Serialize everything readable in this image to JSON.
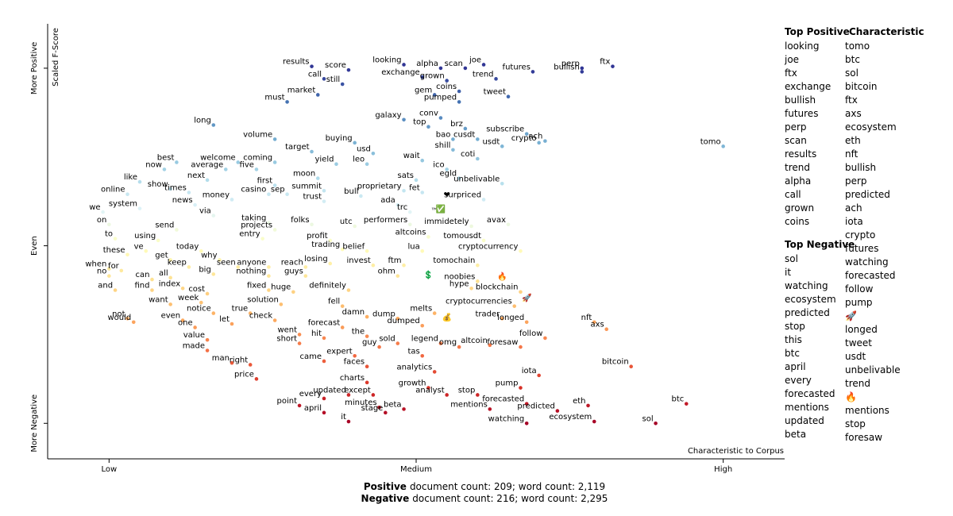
{
  "chart_data": {
    "type": "scatter",
    "x_label": "Characteristic to Corpus",
    "y_label": "Scaled F-Score",
    "xlim": [
      -0.1,
      1.1
    ],
    "ylim": [
      -1.2,
      1.25
    ],
    "xticks": [
      {
        "value": 0,
        "label": "Low"
      },
      {
        "value": 0.5,
        "label": "Medium"
      },
      {
        "value": 1,
        "label": "High"
      }
    ],
    "yticks": [
      {
        "value": -1,
        "label": "More Negative"
      },
      {
        "value": 0,
        "label": "Even"
      },
      {
        "value": 1,
        "label": "More Positive"
      }
    ],
    "colorscale": [
      "#a50026",
      "#d73027",
      "#f46d43",
      "#fdae61",
      "#fee090",
      "#ffffbf",
      "#e0f3f8",
      "#abd9e9",
      "#74add1",
      "#4575b4",
      "#313695"
    ],
    "points": [
      {
        "word": "results",
        "x": 0.33,
        "y": 1.01
      },
      {
        "word": "score",
        "x": 0.39,
        "y": 0.99
      },
      {
        "word": "call",
        "x": 0.35,
        "y": 0.94
      },
      {
        "word": "market",
        "x": 0.34,
        "y": 0.85
      },
      {
        "word": "still",
        "x": 0.38,
        "y": 0.91
      },
      {
        "word": "must",
        "x": 0.29,
        "y": 0.81
      },
      {
        "word": "looking",
        "x": 0.48,
        "y": 1.02
      },
      {
        "word": "scan",
        "x": 0.58,
        "y": 1.0
      },
      {
        "word": "alpha",
        "x": 0.54,
        "y": 1.0
      },
      {
        "word": "joe",
        "x": 0.61,
        "y": 1.02
      },
      {
        "word": "exchange",
        "x": 0.51,
        "y": 0.95
      },
      {
        "word": "grown",
        "x": 0.55,
        "y": 0.93
      },
      {
        "word": "trend",
        "x": 0.63,
        "y": 0.94
      },
      {
        "word": "futures",
        "x": 0.69,
        "y": 0.98
      },
      {
        "word": "perp",
        "x": 0.77,
        "y": 1.0
      },
      {
        "word": "ftx",
        "x": 0.82,
        "y": 1.01
      },
      {
        "word": "bullish",
        "x": 0.77,
        "y": 0.98
      },
      {
        "word": "gem",
        "x": 0.53,
        "y": 0.85
      },
      {
        "word": "coins",
        "x": 0.57,
        "y": 0.87
      },
      {
        "word": "pumped",
        "x": 0.57,
        "y": 0.81
      },
      {
        "word": "tweet",
        "x": 0.65,
        "y": 0.84
      },
      {
        "word": "galaxy",
        "x": 0.48,
        "y": 0.71
      },
      {
        "word": "conv",
        "x": 0.54,
        "y": 0.72
      },
      {
        "word": "brz",
        "x": 0.58,
        "y": 0.66
      },
      {
        "word": "top",
        "x": 0.52,
        "y": 0.67
      },
      {
        "word": "subscribe",
        "x": 0.68,
        "y": 0.63
      },
      {
        "word": "bao",
        "x": 0.56,
        "y": 0.6
      },
      {
        "word": "cusdt",
        "x": 0.6,
        "y": 0.6
      },
      {
        "word": "usdt",
        "x": 0.64,
        "y": 0.56
      },
      {
        "word": "crypto",
        "x": 0.7,
        "y": 0.58
      },
      {
        "word": "ach",
        "x": 0.71,
        "y": 0.59
      },
      {
        "word": "shill",
        "x": 0.56,
        "y": 0.54
      },
      {
        "word": "tomo",
        "x": 1.0,
        "y": 0.56
      },
      {
        "word": "long",
        "x": 0.17,
        "y": 0.68
      },
      {
        "word": "volume",
        "x": 0.27,
        "y": 0.6
      },
      {
        "word": "buying",
        "x": 0.4,
        "y": 0.58
      },
      {
        "word": "usd",
        "x": 0.43,
        "y": 0.52
      },
      {
        "word": "target",
        "x": 0.33,
        "y": 0.53
      },
      {
        "word": "best",
        "x": 0.11,
        "y": 0.47
      },
      {
        "word": "welcome",
        "x": 0.21,
        "y": 0.47
      },
      {
        "word": "coming",
        "x": 0.27,
        "y": 0.47
      },
      {
        "word": "now",
        "x": 0.09,
        "y": 0.43
      },
      {
        "word": "average",
        "x": 0.19,
        "y": 0.43
      },
      {
        "word": "five",
        "x": 0.24,
        "y": 0.43
      },
      {
        "word": "yield",
        "x": 0.37,
        "y": 0.46
      },
      {
        "word": "leo",
        "x": 0.42,
        "y": 0.46
      },
      {
        "word": "wait",
        "x": 0.51,
        "y": 0.48
      },
      {
        "word": "coti",
        "x": 0.6,
        "y": 0.49
      },
      {
        "word": "ico",
        "x": 0.55,
        "y": 0.43
      },
      {
        "word": "like",
        "x": 0.05,
        "y": 0.36
      },
      {
        "word": "next",
        "x": 0.16,
        "y": 0.37
      },
      {
        "word": "first",
        "x": 0.27,
        "y": 0.34
      },
      {
        "word": "moon",
        "x": 0.34,
        "y": 0.38
      },
      {
        "word": "sats",
        "x": 0.5,
        "y": 0.37
      },
      {
        "word": "egld",
        "x": 0.57,
        "y": 0.38
      },
      {
        "word": "show",
        "x": 0.1,
        "y": 0.32
      },
      {
        "word": "summit",
        "x": 0.35,
        "y": 0.31
      },
      {
        "word": "unbelivable",
        "x": 0.64,
        "y": 0.35
      },
      {
        "word": "proprietary",
        "x": 0.48,
        "y": 0.31
      },
      {
        "word": "times",
        "x": 0.13,
        "y": 0.3
      },
      {
        "word": "online",
        "x": 0.03,
        "y": 0.29
      },
      {
        "word": "casino",
        "x": 0.26,
        "y": 0.29
      },
      {
        "word": "sep",
        "x": 0.29,
        "y": 0.29
      },
      {
        "word": "bull",
        "x": 0.41,
        "y": 0.28
      },
      {
        "word": "fet",
        "x": 0.51,
        "y": 0.3
      },
      {
        "word": "money",
        "x": 0.2,
        "y": 0.26
      },
      {
        "word": "news",
        "x": 0.14,
        "y": 0.23
      },
      {
        "word": "trust",
        "x": 0.35,
        "y": 0.25
      },
      {
        "word": "ada",
        "x": 0.47,
        "y": 0.23
      },
      {
        "word": "surpriced",
        "x": 0.61,
        "y": 0.26
      },
      {
        "word": "we",
        "x": -0.01,
        "y": 0.19
      },
      {
        "word": "system",
        "x": 0.05,
        "y": 0.21
      },
      {
        "word": "via",
        "x": 0.17,
        "y": 0.17
      },
      {
        "word": "trc",
        "x": 0.49,
        "y": 0.19
      },
      {
        "word": "❤",
        "x": 0.55,
        "y": 0.29
      },
      {
        "word": "™",
        "x": 0.53,
        "y": 0.2
      },
      {
        "word": "✅",
        "x": 0.54,
        "y": 0.21
      },
      {
        "word": "on",
        "x": 0.0,
        "y": 0.12
      },
      {
        "word": "taking",
        "x": 0.26,
        "y": 0.13
      },
      {
        "word": "send",
        "x": 0.11,
        "y": 0.09
      },
      {
        "word": "projects",
        "x": 0.27,
        "y": 0.09
      },
      {
        "word": "folks",
        "x": 0.33,
        "y": 0.12
      },
      {
        "word": "utc",
        "x": 0.4,
        "y": 0.11
      },
      {
        "word": "performers",
        "x": 0.49,
        "y": 0.12
      },
      {
        "word": "immidetely",
        "x": 0.59,
        "y": 0.11
      },
      {
        "word": "avax",
        "x": 0.65,
        "y": 0.12
      },
      {
        "word": "altcoins",
        "x": 0.52,
        "y": 0.05
      },
      {
        "word": "to",
        "x": 0.01,
        "y": 0.04
      },
      {
        "word": "using",
        "x": 0.08,
        "y": 0.03
      },
      {
        "word": "entry",
        "x": 0.25,
        "y": 0.04
      },
      {
        "word": "profit",
        "x": 0.36,
        "y": 0.03
      },
      {
        "word": "tomousdt",
        "x": 0.61,
        "y": 0.03
      },
      {
        "word": "these",
        "x": 0.03,
        "y": -0.05
      },
      {
        "word": "ve",
        "x": 0.06,
        "y": -0.03
      },
      {
        "word": "today",
        "x": 0.15,
        "y": -0.03
      },
      {
        "word": "trading",
        "x": 0.38,
        "y": -0.02
      },
      {
        "word": "belief",
        "x": 0.42,
        "y": -0.03
      },
      {
        "word": "lua",
        "x": 0.51,
        "y": -0.03
      },
      {
        "word": "cryptocurrency",
        "x": 0.67,
        "y": -0.03
      },
      {
        "word": "get",
        "x": 0.1,
        "y": -0.08
      },
      {
        "word": "why",
        "x": 0.18,
        "y": -0.08
      },
      {
        "word": "seen",
        "x": 0.21,
        "y": -0.12
      },
      {
        "word": "anyone",
        "x": 0.26,
        "y": -0.12
      },
      {
        "word": "reach",
        "x": 0.32,
        "y": -0.12
      },
      {
        "word": "losing",
        "x": 0.36,
        "y": -0.1
      },
      {
        "word": "invest",
        "x": 0.43,
        "y": -0.11
      },
      {
        "word": "ftm",
        "x": 0.48,
        "y": -0.11
      },
      {
        "word": "tomochain",
        "x": 0.6,
        "y": -0.11
      },
      {
        "word": "when",
        "x": 0.0,
        "y": -0.13
      },
      {
        "word": "for",
        "x": 0.02,
        "y": -0.14
      },
      {
        "word": "keep",
        "x": 0.13,
        "y": -0.12
      },
      {
        "word": "no",
        "x": 0.0,
        "y": -0.17
      },
      {
        "word": "big",
        "x": 0.17,
        "y": -0.16
      },
      {
        "word": "nothing",
        "x": 0.26,
        "y": -0.17
      },
      {
        "word": "guys",
        "x": 0.32,
        "y": -0.17
      },
      {
        "word": "ohm",
        "x": 0.47,
        "y": -0.17
      },
      {
        "word": "can",
        "x": 0.07,
        "y": -0.19
      },
      {
        "word": "all",
        "x": 0.1,
        "y": -0.18
      },
      {
        "word": "noobies",
        "x": 0.6,
        "y": -0.2
      },
      {
        "word": "🔥",
        "x": 0.64,
        "y": -0.17
      },
      {
        "word": "💲",
        "x": 0.52,
        "y": -0.16
      },
      {
        "word": "and",
        "x": 0.01,
        "y": -0.25
      },
      {
        "word": "find",
        "x": 0.07,
        "y": -0.25
      },
      {
        "word": "index",
        "x": 0.12,
        "y": -0.24
      },
      {
        "word": "fixed",
        "x": 0.26,
        "y": -0.25
      },
      {
        "word": "huge",
        "x": 0.3,
        "y": -0.26
      },
      {
        "word": "definitely",
        "x": 0.39,
        "y": -0.25
      },
      {
        "word": "hype",
        "x": 0.59,
        "y": -0.24
      },
      {
        "word": "blockchain",
        "x": 0.67,
        "y": -0.26
      },
      {
        "word": "cost",
        "x": 0.16,
        "y": -0.27
      },
      {
        "word": "🚀",
        "x": 0.68,
        "y": -0.29
      },
      {
        "word": "want",
        "x": 0.1,
        "y": -0.33
      },
      {
        "word": "week",
        "x": 0.15,
        "y": -0.32
      },
      {
        "word": "solution",
        "x": 0.28,
        "y": -0.33
      },
      {
        "word": "fell",
        "x": 0.38,
        "y": -0.34
      },
      {
        "word": "cryptocurrencies",
        "x": 0.66,
        "y": -0.34
      },
      {
        "word": "notice",
        "x": 0.17,
        "y": -0.38
      },
      {
        "word": "true",
        "x": 0.23,
        "y": -0.38
      },
      {
        "word": "melts",
        "x": 0.53,
        "y": -0.38
      },
      {
        "word": "not",
        "x": 0.03,
        "y": -0.41
      },
      {
        "word": "even",
        "x": 0.12,
        "y": -0.42
      },
      {
        "word": "damn",
        "x": 0.42,
        "y": -0.4
      },
      {
        "word": "dump",
        "x": 0.47,
        "y": -0.41
      },
      {
        "word": "check",
        "x": 0.27,
        "y": -0.42
      },
      {
        "word": "let",
        "x": 0.2,
        "y": -0.44
      },
      {
        "word": "💰",
        "x": 0.55,
        "y": -0.4
      },
      {
        "word": "trader",
        "x": 0.64,
        "y": -0.41
      },
      {
        "word": "longed",
        "x": 0.68,
        "y": -0.43
      },
      {
        "word": "nft",
        "x": 0.79,
        "y": -0.43
      },
      {
        "word": "would",
        "x": 0.04,
        "y": -0.43
      },
      {
        "word": "dumped",
        "x": 0.51,
        "y": -0.45
      },
      {
        "word": "forecast",
        "x": 0.38,
        "y": -0.46
      },
      {
        "word": "one",
        "x": 0.14,
        "y": -0.46
      },
      {
        "word": "axs",
        "x": 0.81,
        "y": -0.47
      },
      {
        "word": "went",
        "x": 0.31,
        "y": -0.5
      },
      {
        "word": "the",
        "x": 0.42,
        "y": -0.51
      },
      {
        "word": "hit",
        "x": 0.35,
        "y": -0.52
      },
      {
        "word": "value",
        "x": 0.16,
        "y": -0.53
      },
      {
        "word": "follow",
        "x": 0.71,
        "y": -0.52
      },
      {
        "word": "short",
        "x": 0.31,
        "y": -0.55
      },
      {
        "word": "guy",
        "x": 0.44,
        "y": -0.57
      },
      {
        "word": "sold",
        "x": 0.47,
        "y": -0.55
      },
      {
        "word": "legend",
        "x": 0.54,
        "y": -0.55
      },
      {
        "word": "omg",
        "x": 0.57,
        "y": -0.57
      },
      {
        "word": "altcoin",
        "x": 0.62,
        "y": -0.56
      },
      {
        "word": "foresaw",
        "x": 0.67,
        "y": -0.57
      },
      {
        "word": "made",
        "x": 0.16,
        "y": -0.59
      },
      {
        "word": "tas",
        "x": 0.51,
        "y": -0.62
      },
      {
        "word": "expert",
        "x": 0.4,
        "y": -0.62
      },
      {
        "word": "came",
        "x": 0.35,
        "y": -0.65
      },
      {
        "word": "man",
        "x": 0.2,
        "y": -0.66
      },
      {
        "word": "right",
        "x": 0.23,
        "y": -0.67
      },
      {
        "word": "faces",
        "x": 0.42,
        "y": -0.68
      },
      {
        "word": "bitcoin",
        "x": 0.85,
        "y": -0.68
      },
      {
        "word": "price",
        "x": 0.24,
        "y": -0.75
      },
      {
        "word": "analytics",
        "x": 0.53,
        "y": -0.71
      },
      {
        "word": "iota",
        "x": 0.7,
        "y": -0.73
      },
      {
        "word": "charts",
        "x": 0.42,
        "y": -0.77
      },
      {
        "word": "pump",
        "x": 0.67,
        "y": -0.8
      },
      {
        "word": "growth",
        "x": 0.52,
        "y": -0.8
      },
      {
        "word": "stop",
        "x": 0.6,
        "y": -0.84
      },
      {
        "word": "analyst",
        "x": 0.55,
        "y": -0.84
      },
      {
        "word": "updated",
        "x": 0.39,
        "y": -0.84
      },
      {
        "word": "except",
        "x": 0.43,
        "y": -0.84
      },
      {
        "word": "every",
        "x": 0.35,
        "y": -0.86
      },
      {
        "word": "point",
        "x": 0.31,
        "y": -0.9
      },
      {
        "word": "btc",
        "x": 0.94,
        "y": -0.89
      },
      {
        "word": "minutes",
        "x": 0.44,
        "y": -0.91
      },
      {
        "word": "forecasted",
        "x": 0.68,
        "y": -0.89
      },
      {
        "word": "eth",
        "x": 0.78,
        "y": -0.9
      },
      {
        "word": "beta",
        "x": 0.48,
        "y": -0.92
      },
      {
        "word": "predicted",
        "x": 0.73,
        "y": -0.93
      },
      {
        "word": "stage",
        "x": 0.45,
        "y": -0.94
      },
      {
        "word": "april",
        "x": 0.35,
        "y": -0.94
      },
      {
        "word": "mentions",
        "x": 0.62,
        "y": -0.92
      },
      {
        "word": "it",
        "x": 0.39,
        "y": -0.99
      },
      {
        "word": "ecosystem",
        "x": 0.79,
        "y": -0.99
      },
      {
        "word": "sol",
        "x": 0.89,
        "y": -1.0
      },
      {
        "word": "watching",
        "x": 0.68,
        "y": -1.0
      }
    ]
  },
  "lists": {
    "top_positive": {
      "title": "Top Positive",
      "items": [
        "looking",
        "joe",
        "ftx",
        "exchange",
        "bullish",
        "futures",
        "perp",
        "scan",
        "results",
        "trend",
        "alpha",
        "call",
        "grown",
        "coins"
      ]
    },
    "characteristic": {
      "title": "Characteristic",
      "items": [
        "tomo",
        "btc",
        "sol",
        "bitcoin",
        "ftx",
        "axs",
        "ecosystem",
        "eth",
        "nft",
        "bullish",
        "perp",
        "predicted",
        "ach",
        "iota",
        "crypto",
        "futures",
        "watching",
        "forecasted",
        "follow",
        "pump",
        "🚀",
        "longed",
        "tweet",
        "usdt",
        "unbelivable",
        "trend",
        "🔥",
        "mentions",
        "stop",
        "foresaw"
      ]
    },
    "top_negative": {
      "title": "Top Negative",
      "items": [
        "sol",
        "it",
        "watching",
        "ecosystem",
        "predicted",
        "stop",
        "this",
        "btc",
        "april",
        "every",
        "forecasted",
        "mentions",
        "updated",
        "beta"
      ]
    }
  },
  "footer": [
    {
      "label": "Positive",
      "text": "document count: 209; word count: 2,119"
    },
    {
      "label": "Negative",
      "text": "document count: 216; word count: 2,295"
    }
  ]
}
